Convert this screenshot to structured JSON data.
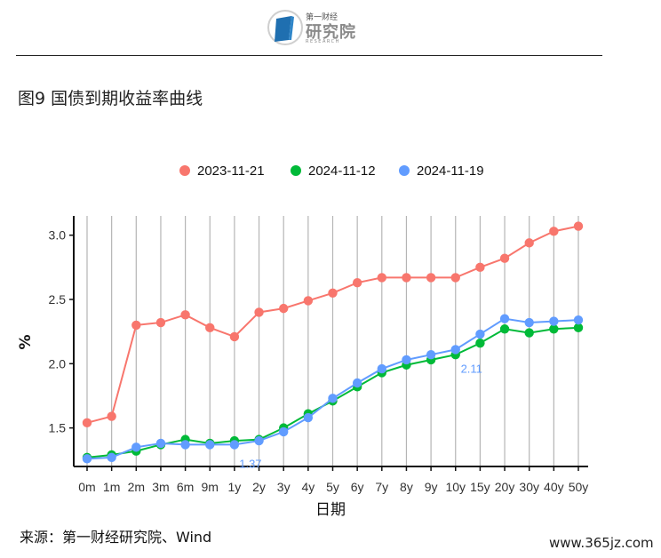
{
  "header": {
    "brand_small": "第一财经",
    "brand_name": "研究院",
    "brand_sub": "RESEARCH",
    "logo_icon": "book-logo-icon",
    "accent_color": "#1f6fb0"
  },
  "figure_title": "图9 国债到期收益率曲线",
  "source": "来源：第一财经研究院、Wind",
  "watermark": "www.365jz.com",
  "chart_data": {
    "type": "line",
    "categories": [
      "0m",
      "1m",
      "2m",
      "3m",
      "6m",
      "9m",
      "1y",
      "2y",
      "3y",
      "4y",
      "5y",
      "6y",
      "7y",
      "8y",
      "9y",
      "10y",
      "15y",
      "20y",
      "30y",
      "40y",
      "50y"
    ],
    "xlabel": "日期",
    "ylabel": "%",
    "ylim": [
      1.2,
      3.15
    ],
    "yticks": [
      1.5,
      2.0,
      2.5,
      3.0
    ],
    "ytick_labels": [
      "1.5",
      "2.0",
      "2.5",
      "3.0"
    ],
    "grid": "vertical",
    "legend_position": "top",
    "series": [
      {
        "name": "2023-11-21",
        "color": "#F8766D",
        "values": [
          1.54,
          1.59,
          2.3,
          2.32,
          2.38,
          2.28,
          2.21,
          2.4,
          2.43,
          2.49,
          2.55,
          2.63,
          2.67,
          2.67,
          2.67,
          2.67,
          2.75,
          2.82,
          2.94,
          3.03,
          3.07
        ]
      },
      {
        "name": "2024-11-12",
        "color": "#00BA38",
        "values": [
          1.27,
          1.29,
          1.32,
          1.37,
          1.41,
          1.38,
          1.4,
          1.41,
          1.5,
          1.61,
          1.71,
          1.82,
          1.93,
          1.99,
          2.03,
          2.07,
          2.16,
          2.27,
          2.24,
          2.27,
          2.28
        ]
      },
      {
        "name": "2024-11-19",
        "color": "#619CFF",
        "values": [
          1.26,
          1.27,
          1.35,
          1.38,
          1.37,
          1.37,
          1.37,
          1.4,
          1.47,
          1.58,
          1.73,
          1.85,
          1.96,
          2.03,
          2.07,
          2.11,
          2.23,
          2.35,
          2.32,
          2.33,
          2.34
        ]
      }
    ],
    "annotations": [
      {
        "series": "2024-11-19",
        "category": "1y",
        "text": "1.37",
        "color": "#619CFF"
      },
      {
        "series": "2024-11-19",
        "category": "10y",
        "text": "2.11",
        "color": "#619CFF"
      }
    ]
  }
}
